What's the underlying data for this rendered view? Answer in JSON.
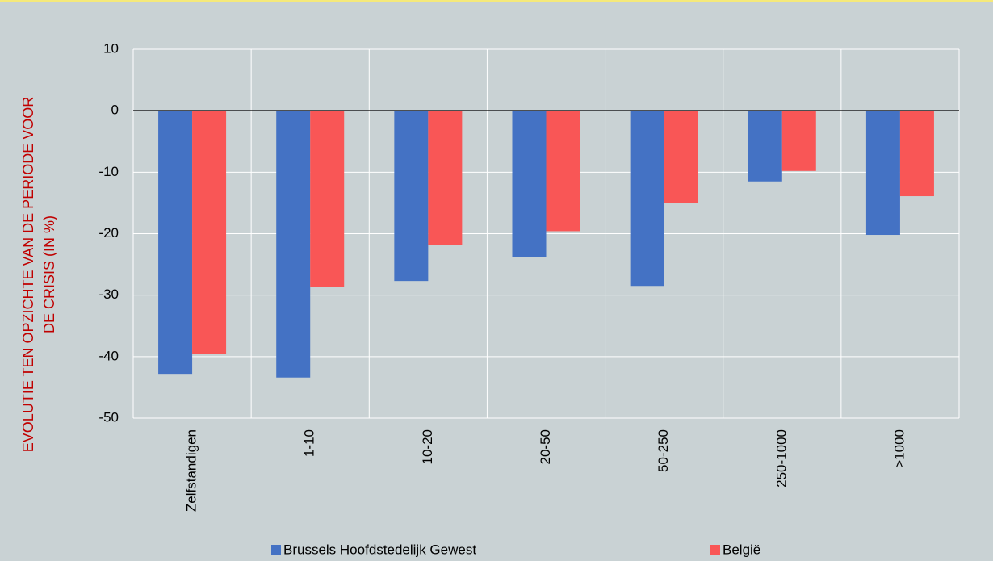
{
  "chart_data": {
    "type": "bar",
    "y_label": [
      "EVOLUTIE TEN OPZICHTE VAN DE PERIODE VOOR",
      "DE CRISIS  (IN %)"
    ],
    "categories": [
      "Zelfstandigen",
      "1-10",
      "10-20",
      "20-50",
      "50-250",
      "250-1000",
      ">1000"
    ],
    "series": [
      {
        "name": "Brussels Hoofdstedelijk Gewest",
        "color": "#4472c4",
        "values": [
          -42.8,
          -43.4,
          -27.7,
          -23.8,
          -28.5,
          -11.5,
          -20.2
        ]
      },
      {
        "name": "België",
        "color": "#f95656",
        "values": [
          -39.5,
          -28.6,
          -21.9,
          -19.6,
          -15.0,
          -9.8,
          -13.9
        ]
      }
    ],
    "ylim": [
      -50,
      10
    ],
    "yticks": [
      10,
      0,
      -10,
      -20,
      -30,
      -40,
      -50
    ],
    "grid": true
  }
}
